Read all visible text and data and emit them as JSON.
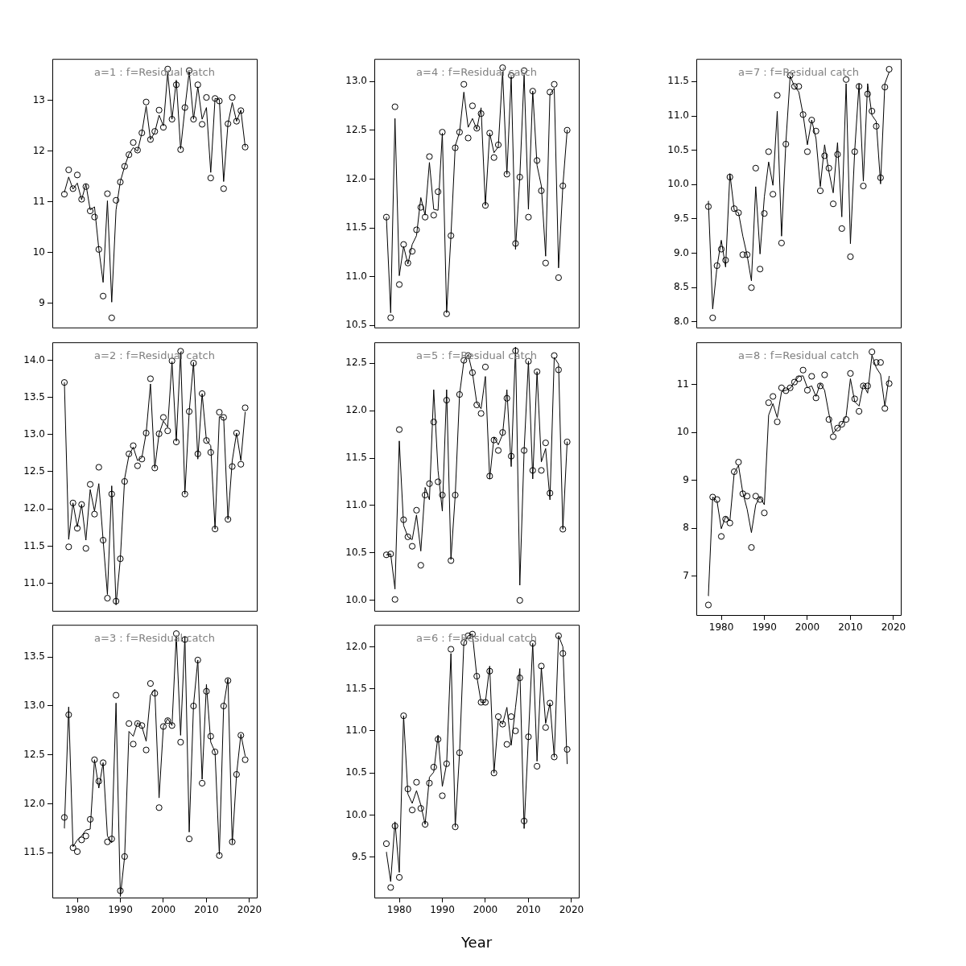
{
  "chart_data": [
    {
      "type": "scatter",
      "annotations": [
        "a=1 : f=Residual catch"
      ],
      "x": [
        1977,
        1978,
        1979,
        1980,
        1981,
        1982,
        1983,
        1984,
        1985,
        1986,
        1987,
        1988,
        1989,
        1990,
        1991,
        1992,
        1993,
        1994,
        1995,
        1996,
        1997,
        1998,
        1999,
        2000,
        2001,
        2002,
        2003,
        2004,
        2005,
        2006,
        2007,
        2008,
        2009,
        2010,
        2011,
        2012,
        2013,
        2014,
        2015,
        2016,
        2017,
        2018,
        2019
      ],
      "xlim": [
        1974.2,
        2021.7
      ],
      "xticks": [
        1980,
        1990,
        2000,
        2010,
        2020
      ],
      "ylim": [
        8.52,
        13.82
      ],
      "yticks": [
        9,
        10,
        11,
        12,
        13
      ],
      "tick_labels": "y",
      "series": [
        {
          "type": "scatter",
          "marker": "circle",
          "color": "#000000",
          "values": [
            11.15,
            11.63,
            11.26,
            11.53,
            11.05,
            11.3,
            10.82,
            10.7,
            10.06,
            9.14,
            11.16,
            8.71,
            11.03,
            11.39,
            11.7,
            11.93,
            12.17,
            12.02,
            12.36,
            12.97,
            12.23,
            12.39,
            12.81,
            12.47,
            13.62,
            12.63,
            13.31,
            12.03,
            12.86,
            13.59,
            12.63,
            13.31,
            12.53,
            13.06,
            11.47,
            13.04,
            12.99,
            11.26,
            12.54,
            13.06,
            12.59,
            12.8,
            12.08
          ]
        },
        {
          "type": "line",
          "marker": "none",
          "color": "#000000",
          "values": [
            11.19,
            11.49,
            11.25,
            11.37,
            11.04,
            11.35,
            10.84,
            10.9,
            10.07,
            9.41,
            11.02,
            9.02,
            10.84,
            11.4,
            11.7,
            11.94,
            12.07,
            12.0,
            12.36,
            12.89,
            12.23,
            12.37,
            12.71,
            12.5,
            13.55,
            12.63,
            13.4,
            12.04,
            12.84,
            13.57,
            12.63,
            13.27,
            12.63,
            12.86,
            11.58,
            13.04,
            13.02,
            11.4,
            12.54,
            12.96,
            12.59,
            12.81,
            12.09
          ]
        }
      ]
    },
    {
      "type": "scatter",
      "annotations": [
        "a=4 : f=Residual catch"
      ],
      "x": [
        1977,
        1978,
        1979,
        1980,
        1981,
        1982,
        1983,
        1984,
        1985,
        1986,
        1987,
        1988,
        1989,
        1990,
        1991,
        1992,
        1993,
        1994,
        1995,
        1996,
        1997,
        1998,
        1999,
        2000,
        2001,
        2002,
        2003,
        2004,
        2005,
        2006,
        2007,
        2008,
        2009,
        2010,
        2011,
        2012,
        2013,
        2014,
        2015,
        2016,
        2017,
        2018,
        2019
      ],
      "xlim": [
        1974.2,
        2021.7
      ],
      "xticks": [
        1980,
        1990,
        2000,
        2010,
        2020
      ],
      "ylim": [
        10.48,
        13.23
      ],
      "yticks": [
        {
          "value": 10.5,
          "label": "10.5"
        },
        {
          "value": 11,
          "label": "11.0"
        },
        {
          "value": 11.5,
          "label": "11.5"
        },
        {
          "value": 12,
          "label": "12.0"
        },
        {
          "value": 12.5,
          "label": "12.5"
        },
        {
          "value": 13,
          "label": "13.0"
        }
      ],
      "tick_labels": "y",
      "series": [
        {
          "type": "scatter",
          "marker": "circle",
          "color": "#000000",
          "values": [
            11.61,
            10.58,
            12.74,
            10.92,
            11.33,
            11.14,
            11.26,
            11.48,
            11.71,
            11.61,
            12.23,
            11.63,
            11.87,
            12.48,
            10.62,
            11.42,
            12.32,
            12.48,
            12.97,
            12.42,
            12.75,
            12.52,
            12.67,
            11.73,
            12.47,
            12.22,
            12.35,
            13.14,
            12.05,
            13.06,
            11.34,
            12.02,
            13.11,
            11.61,
            12.9,
            12.19,
            11.88,
            11.14,
            12.89,
            12.97,
            10.99,
            11.93,
            12.5
          ]
        },
        {
          "type": "line",
          "marker": "none",
          "color": "#000000",
          "values": [
            11.61,
            10.63,
            12.62,
            11.01,
            11.31,
            11.13,
            11.33,
            11.42,
            11.81,
            11.63,
            12.17,
            11.69,
            11.68,
            12.47,
            10.63,
            11.42,
            12.34,
            12.48,
            12.89,
            12.53,
            12.62,
            12.51,
            12.73,
            11.73,
            12.47,
            12.27,
            12.33,
            13.1,
            12.05,
            13.05,
            11.28,
            12.02,
            13.07,
            11.69,
            12.9,
            12.14,
            11.93,
            11.21,
            12.87,
            12.93,
            11.09,
            11.93,
            12.5
          ]
        }
      ]
    },
    {
      "type": "scatter",
      "annotations": [
        "a=7 : f=Residual catch"
      ],
      "x": [
        1977,
        1978,
        1979,
        1980,
        1981,
        1982,
        1983,
        1984,
        1985,
        1986,
        1987,
        1988,
        1989,
        1990,
        1991,
        1992,
        1993,
        1994,
        1995,
        1996,
        1997,
        1998,
        1999,
        2000,
        2001,
        2002,
        2003,
        2004,
        2005,
        2006,
        2007,
        2008,
        2009,
        2010,
        2011,
        2012,
        2013,
        2014,
        2015,
        2016,
        2017,
        2018,
        2019
      ],
      "xlim": [
        1974.2,
        2021.7
      ],
      "xticks": [
        1980,
        1990,
        2000,
        2010,
        2020
      ],
      "ylim": [
        7.92,
        11.83
      ],
      "yticks": [
        {
          "value": 8,
          "label": "8.0"
        },
        {
          "value": 8.5,
          "label": "8.5"
        },
        {
          "value": 9,
          "label": "9.0"
        },
        {
          "value": 9.5,
          "label": "9.5"
        },
        {
          "value": 10,
          "label": "10.0"
        },
        {
          "value": 10.5,
          "label": "10.5"
        },
        {
          "value": 11,
          "label": "11.0"
        },
        {
          "value": 11.5,
          "label": "11.5"
        }
      ],
      "tick_labels": "y",
      "series": [
        {
          "type": "scatter",
          "marker": "circle",
          "color": "#000000",
          "values": [
            9.68,
            8.06,
            8.82,
            9.06,
            8.9,
            10.11,
            9.65,
            9.59,
            8.98,
            8.98,
            8.5,
            10.24,
            8.77,
            9.58,
            10.48,
            9.86,
            11.3,
            9.15,
            10.59,
            11.59,
            11.43,
            11.43,
            11.02,
            10.48,
            10.94,
            10.78,
            9.91,
            10.42,
            10.24,
            9.72,
            10.44,
            9.36,
            11.53,
            8.95,
            10.48,
            11.43,
            9.98,
            11.32,
            11.07,
            10.85,
            10.1,
            11.42,
            11.68
          ]
        },
        {
          "type": "line",
          "marker": "none",
          "color": "#000000",
          "values": [
            9.76,
            8.19,
            8.8,
            9.19,
            8.8,
            10.16,
            9.63,
            9.59,
            9.25,
            8.97,
            8.6,
            9.97,
            8.99,
            9.82,
            10.33,
            9.99,
            11.07,
            9.25,
            10.61,
            11.58,
            11.43,
            11.35,
            11.02,
            10.58,
            10.94,
            10.67,
            9.97,
            10.58,
            10.19,
            9.88,
            10.61,
            9.53,
            11.47,
            9.14,
            10.5,
            11.47,
            10.05,
            11.47,
            11.01,
            10.92,
            10.01,
            11.47,
            11.64
          ]
        }
      ]
    },
    {
      "type": "scatter",
      "annotations": [
        "a=2 : f=Residual catch"
      ],
      "x": [
        1977,
        1978,
        1979,
        1980,
        1981,
        1982,
        1983,
        1984,
        1985,
        1986,
        1987,
        1988,
        1989,
        1990,
        1991,
        1992,
        1993,
        1994,
        1995,
        1996,
        1997,
        1998,
        1999,
        2000,
        2001,
        2002,
        2003,
        2004,
        2005,
        2006,
        2007,
        2008,
        2009,
        2010,
        2011,
        2012,
        2013,
        2014,
        2015,
        2016,
        2017,
        2018,
        2019
      ],
      "xlim": [
        1974.2,
        2021.7
      ],
      "xticks": [
        1980,
        1990,
        2000,
        2010,
        2020
      ],
      "ylim": [
        10.63,
        14.24
      ],
      "yticks": [
        {
          "value": 11,
          "label": "11.0"
        },
        {
          "value": 11.5,
          "label": "11.5"
        },
        {
          "value": 12,
          "label": "12.0"
        },
        {
          "value": 12.5,
          "label": "12.5"
        },
        {
          "value": 13,
          "label": "13.0"
        },
        {
          "value": 13.5,
          "label": "13.5"
        },
        {
          "value": 14,
          "label": "14.0"
        }
      ],
      "tick_labels": "y",
      "series": [
        {
          "type": "scatter",
          "marker": "circle",
          "color": "#000000",
          "values": [
            13.7,
            11.49,
            12.08,
            11.74,
            12.06,
            11.47,
            12.33,
            11.93,
            12.56,
            11.58,
            10.8,
            12.2,
            10.76,
            11.33,
            12.37,
            12.74,
            12.85,
            12.58,
            12.67,
            13.02,
            13.75,
            12.55,
            13.01,
            13.23,
            13.05,
            13.99,
            12.9,
            14.12,
            12.2,
            13.31,
            13.96,
            12.74,
            13.55,
            12.92,
            12.76,
            11.73,
            13.3,
            13.23,
            11.86,
            12.57,
            13.02,
            12.6,
            13.36
          ]
        },
        {
          "type": "line",
          "marker": "none",
          "color": "#000000",
          "values": [
            13.7,
            11.59,
            12.08,
            11.76,
            12.06,
            11.58,
            12.26,
            11.97,
            12.34,
            11.58,
            10.85,
            12.31,
            10.71,
            11.33,
            12.41,
            12.72,
            12.83,
            12.65,
            12.69,
            13.02,
            13.68,
            12.55,
            13.01,
            13.18,
            13.1,
            13.98,
            12.91,
            14.11,
            12.2,
            13.31,
            13.97,
            12.67,
            13.55,
            12.92,
            12.85,
            11.73,
            13.24,
            13.23,
            11.86,
            12.65,
            13.02,
            12.65,
            13.3
          ]
        }
      ]
    },
    {
      "type": "scatter",
      "annotations": [
        "a=5 : f=Residual catch"
      ],
      "x": [
        1977,
        1978,
        1979,
        1980,
        1981,
        1982,
        1983,
        1984,
        1985,
        1986,
        1987,
        1988,
        1989,
        1990,
        1991,
        1992,
        1993,
        1994,
        1995,
        1996,
        1997,
        1998,
        1999,
        2000,
        2001,
        2002,
        2003,
        2004,
        2005,
        2006,
        2007,
        2008,
        2009,
        2010,
        2011,
        2012,
        2013,
        2014,
        2015,
        2016,
        2017,
        2018,
        2019
      ],
      "xlim": [
        1974.2,
        2021.7
      ],
      "xticks": [
        1980,
        1990,
        2000,
        2010,
        2020
      ],
      "ylim": [
        9.89,
        12.72
      ],
      "yticks": [
        {
          "value": 10,
          "label": "10.0"
        },
        {
          "value": 10.5,
          "label": "10.5"
        },
        {
          "value": 11,
          "label": "11.0"
        },
        {
          "value": 11.5,
          "label": "11.5"
        },
        {
          "value": 12,
          "label": "12.0"
        },
        {
          "value": 12.5,
          "label": "12.5"
        }
      ],
      "tick_labels": "y",
      "series": [
        {
          "type": "scatter",
          "marker": "circle",
          "color": "#000000",
          "values": [
            10.48,
            10.49,
            10.01,
            11.8,
            10.85,
            10.67,
            10.57,
            10.95,
            10.37,
            11.11,
            11.23,
            11.88,
            11.25,
            11.11,
            12.11,
            10.42,
            11.11,
            12.17,
            12.53,
            12.58,
            12.4,
            12.06,
            11.97,
            12.46,
            11.31,
            11.69,
            11.58,
            11.77,
            12.13,
            11.52,
            12.63,
            10.0,
            11.58,
            12.52,
            11.37,
            12.41,
            11.37,
            11.66,
            11.13,
            12.58,
            12.43,
            10.75,
            11.67
          ]
        },
        {
          "type": "line",
          "marker": "none",
          "color": "#000000",
          "values": [
            10.48,
            10.49,
            10.12,
            11.68,
            10.79,
            10.67,
            10.64,
            10.9,
            10.52,
            11.19,
            11.06,
            12.22,
            11.37,
            10.94,
            12.22,
            10.43,
            11.11,
            12.17,
            12.52,
            12.59,
            12.4,
            12.08,
            12.02,
            12.36,
            11.28,
            11.72,
            11.64,
            11.75,
            12.22,
            11.41,
            12.67,
            10.16,
            11.58,
            12.52,
            11.28,
            12.41,
            11.46,
            11.6,
            11.06,
            12.56,
            12.49,
            10.75,
            11.67
          ]
        }
      ]
    },
    {
      "type": "scatter",
      "annotations": [
        "a=8 : f=Residual catch"
      ],
      "x": [
        1977,
        1978,
        1979,
        1980,
        1981,
        1982,
        1983,
        1984,
        1985,
        1986,
        1987,
        1988,
        1989,
        1990,
        1991,
        1992,
        1993,
        1994,
        1995,
        1996,
        1997,
        1998,
        1999,
        2000,
        2001,
        2002,
        2003,
        2004,
        2005,
        2006,
        2007,
        2008,
        2009,
        2010,
        2011,
        2012,
        2013,
        2014,
        2015,
        2016,
        2017,
        2018,
        2019
      ],
      "xlim": [
        1974.2,
        2021.7
      ],
      "xticks": [
        1980,
        1990,
        2000,
        2010,
        2020
      ],
      "ylim": [
        6.19,
        11.88
      ],
      "yticks": [
        7,
        8,
        9,
        10,
        11
      ],
      "series": [
        {
          "type": "scatter",
          "marker": "circle",
          "color": "#000000",
          "values": [
            6.4,
            8.65,
            8.6,
            7.83,
            8.19,
            8.11,
            9.18,
            9.38,
            8.72,
            8.67,
            7.6,
            8.67,
            8.6,
            8.32,
            10.62,
            10.75,
            10.22,
            10.93,
            10.87,
            10.93,
            11.05,
            11.12,
            11.3,
            10.88,
            11.17,
            10.72,
            10.97,
            11.2,
            10.27,
            9.91,
            10.09,
            10.17,
            10.27,
            11.23,
            10.7,
            10.44,
            10.97,
            10.97,
            11.68,
            11.46,
            11.46,
            10.5,
            11.02
          ]
        },
        {
          "type": "line",
          "marker": "none",
          "color": "#000000",
          "values": [
            6.59,
            8.65,
            8.57,
            7.99,
            8.24,
            8.16,
            9.15,
            9.31,
            8.74,
            8.4,
            7.91,
            8.49,
            8.65,
            8.49,
            10.36,
            10.6,
            10.31,
            10.85,
            10.88,
            10.92,
            11.05,
            11.17,
            11.18,
            10.93,
            10.97,
            10.75,
            11.02,
            10.88,
            10.39,
            9.98,
            10.09,
            10.17,
            10.34,
            11.12,
            10.64,
            10.55,
            11.0,
            10.82,
            11.61,
            11.35,
            11.21,
            10.55,
            11.17
          ]
        }
      ]
    },
    {
      "type": "scatter",
      "annotations": [
        "a=3 : f=Residual catch"
      ],
      "x": [
        1977,
        1978,
        1979,
        1980,
        1981,
        1982,
        1983,
        1984,
        1985,
        1986,
        1987,
        1988,
        1989,
        1990,
        1991,
        1992,
        1993,
        1994,
        1995,
        1996,
        1997,
        1998,
        1999,
        2000,
        2001,
        2002,
        2003,
        2004,
        2005,
        2006,
        2007,
        2008,
        2009,
        2010,
        2011,
        2012,
        2013,
        2014,
        2015,
        2016,
        2017,
        2018,
        2019
      ],
      "xlim": [
        1974.2,
        2021.7
      ],
      "xticks": [
        1980,
        1990,
        2000,
        2010,
        2020
      ],
      "ylim": [
        11.04,
        13.83
      ],
      "yticks": [
        {
          "value": 11.5,
          "label": "11.5"
        },
        {
          "value": 12,
          "label": "12.0"
        },
        {
          "value": 12.5,
          "label": "12.5"
        },
        {
          "value": 13,
          "label": "13.0"
        },
        {
          "value": 13.5,
          "label": "13.5"
        }
      ],
      "series": [
        {
          "type": "scatter",
          "marker": "circle",
          "color": "#000000",
          "values": [
            11.86,
            12.91,
            11.55,
            11.51,
            11.63,
            11.67,
            11.84,
            12.45,
            12.23,
            12.42,
            11.61,
            11.64,
            13.11,
            11.11,
            11.46,
            12.82,
            12.61,
            12.82,
            12.8,
            12.55,
            13.23,
            13.13,
            11.96,
            12.79,
            12.85,
            12.8,
            13.74,
            12.63,
            13.68,
            11.64,
            13.0,
            13.47,
            12.21,
            13.15,
            12.69,
            12.53,
            11.47,
            13.0,
            13.26,
            11.61,
            12.3,
            12.7,
            12.45
          ]
        },
        {
          "type": "line",
          "marker": "none",
          "color": "#000000",
          "values": [
            11.75,
            12.99,
            11.56,
            11.63,
            11.67,
            11.73,
            11.74,
            12.45,
            12.16,
            12.42,
            11.67,
            11.6,
            13.03,
            11.05,
            11.46,
            12.74,
            12.69,
            12.83,
            12.79,
            12.64,
            13.11,
            13.17,
            12.06,
            12.79,
            12.87,
            12.8,
            13.72,
            12.7,
            13.71,
            11.71,
            13.01,
            13.47,
            12.25,
            13.22,
            12.63,
            12.53,
            11.48,
            13.0,
            13.28,
            11.59,
            12.3,
            12.71,
            12.49
          ]
        }
      ]
    },
    {
      "type": "scatter",
      "annotations": [
        "a=6 : f=Residual catch"
      ],
      "xlabel": "Year",
      "x": [
        1977,
        1978,
        1979,
        1980,
        1981,
        1982,
        1983,
        1984,
        1985,
        1986,
        1987,
        1988,
        1989,
        1990,
        1991,
        1992,
        1993,
        1994,
        1995,
        1996,
        1997,
        1998,
        1999,
        2000,
        2001,
        2002,
        2003,
        2004,
        2005,
        2006,
        2007,
        2008,
        2009,
        2010,
        2011,
        2012,
        2013,
        2014,
        2015,
        2016,
        2017,
        2018,
        2019
      ],
      "xlim": [
        1974.2,
        2021.7
      ],
      "xticks": [
        1980,
        1990,
        2000,
        2010,
        2020
      ],
      "ylim": [
        9.02,
        12.26
      ],
      "yticks": [
        {
          "value": 9.5,
          "label": "9.5"
        },
        {
          "value": 10,
          "label": "10.0"
        },
        {
          "value": 10.5,
          "label": "10.5"
        },
        {
          "value": 11,
          "label": "11.0"
        },
        {
          "value": 11.5,
          "label": "11.5"
        },
        {
          "value": 12,
          "label": "12.0"
        }
      ],
      "series": [
        {
          "type": "scatter",
          "marker": "circle",
          "color": "#000000",
          "values": [
            9.66,
            9.14,
            9.87,
            9.26,
            11.18,
            10.31,
            10.06,
            10.39,
            10.08,
            9.89,
            10.38,
            10.57,
            10.9,
            10.23,
            10.61,
            11.97,
            9.86,
            10.74,
            12.05,
            12.13,
            12.15,
            11.65,
            11.34,
            11.34,
            11.71,
            10.5,
            11.17,
            11.08,
            10.84,
            11.17,
            11.0,
            11.63,
            9.93,
            10.93,
            12.04,
            10.58,
            11.77,
            11.04,
            11.33,
            10.69,
            12.13,
            11.92,
            10.78
          ]
        },
        {
          "type": "line",
          "marker": "none",
          "color": "#000000",
          "values": [
            9.56,
            9.21,
            9.92,
            9.32,
            11.18,
            10.25,
            10.14,
            10.29,
            10.12,
            9.89,
            10.45,
            10.51,
            10.95,
            10.34,
            10.61,
            11.92,
            9.86,
            10.74,
            12.05,
            12.13,
            12.15,
            11.65,
            11.34,
            11.34,
            11.77,
            10.5,
            11.14,
            11.08,
            11.28,
            10.83,
            11.28,
            11.74,
            9.84,
            10.93,
            12.04,
            10.64,
            11.75,
            11.09,
            11.33,
            10.69,
            12.13,
            12.0,
            10.61
          ]
        }
      ]
    }
  ]
}
